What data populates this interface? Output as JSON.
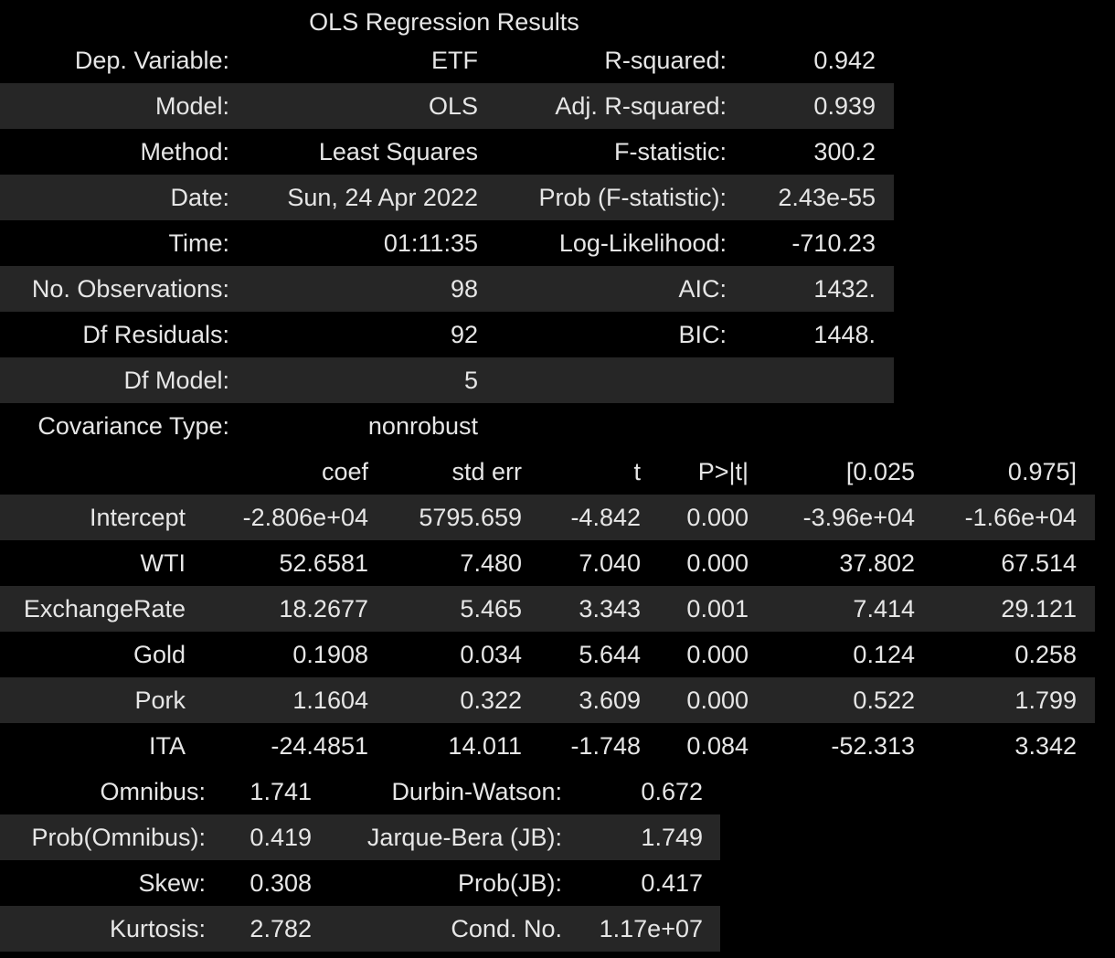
{
  "title": "OLS Regression Results",
  "summary": [
    [
      "Dep. Variable:",
      "ETF",
      "R-squared:",
      "0.942"
    ],
    [
      "Model:",
      "OLS",
      "Adj. R-squared:",
      "0.939"
    ],
    [
      "Method:",
      "Least Squares",
      "F-statistic:",
      "300.2"
    ],
    [
      "Date:",
      "Sun, 24 Apr 2022",
      "Prob (F-statistic):",
      "2.43e-55"
    ],
    [
      "Time:",
      "01:11:35",
      "Log-Likelihood:",
      "-710.23"
    ],
    [
      "No. Observations:",
      "98",
      "AIC:",
      "1432."
    ],
    [
      "Df Residuals:",
      "92",
      "BIC:",
      "1448."
    ],
    [
      "Df Model:",
      "5",
      "",
      ""
    ],
    [
      "Covariance Type:",
      "nonrobust",
      "",
      ""
    ]
  ],
  "coef_header": [
    "",
    "coef",
    "std err",
    "t",
    "P>|t|",
    "[0.025",
    "0.975]"
  ],
  "coef_rows": [
    [
      "Intercept",
      "-2.806e+04",
      "5795.659",
      "-4.842",
      "0.000",
      "-3.96e+04",
      "-1.66e+04"
    ],
    [
      "WTI",
      "52.6581",
      "7.480",
      "7.040",
      "0.000",
      "37.802",
      "67.514"
    ],
    [
      "ExchangeRate",
      "18.2677",
      "5.465",
      "3.343",
      "0.001",
      "7.414",
      "29.121"
    ],
    [
      "Gold",
      "0.1908",
      "0.034",
      "5.644",
      "0.000",
      "0.124",
      "0.258"
    ],
    [
      "Pork",
      "1.1604",
      "0.322",
      "3.609",
      "0.000",
      "0.522",
      "1.799"
    ],
    [
      "ITA",
      "-24.4851",
      "14.011",
      "-1.748",
      "0.084",
      "-52.313",
      "3.342"
    ]
  ],
  "diagnostics": [
    [
      "Omnibus:",
      "1.741",
      "Durbin-Watson:",
      "0.672"
    ],
    [
      "Prob(Omnibus):",
      "0.419",
      "Jarque-Bera (JB):",
      "1.749"
    ],
    [
      "Skew:",
      "0.308",
      "Prob(JB):",
      "0.417"
    ],
    [
      "Kurtosis:",
      "2.782",
      "Cond. No.",
      "1.17e+07"
    ]
  ],
  "colors": {
    "background": "#000000",
    "alt_row": "#262626",
    "text": "#e6e6e6"
  }
}
